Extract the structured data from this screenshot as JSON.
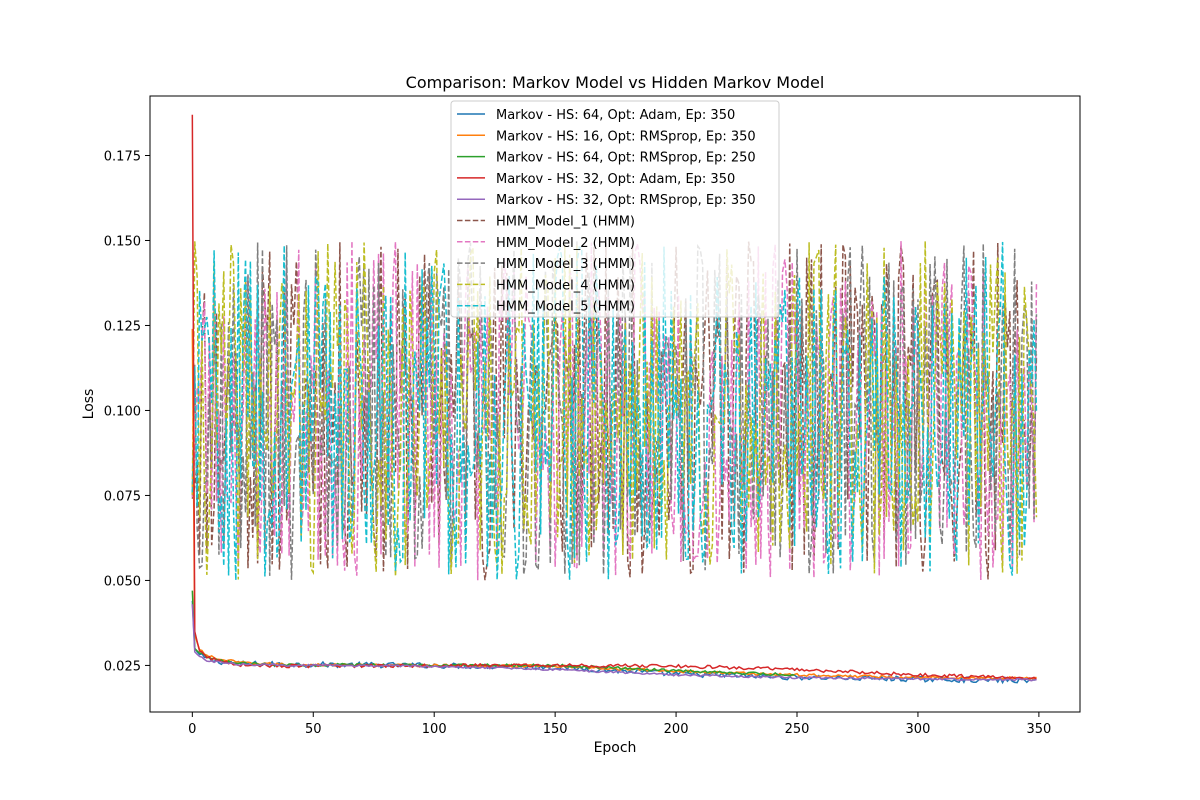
{
  "chart_data": {
    "type": "line",
    "title": "Comparison: Markov Model vs Hidden Markov Model",
    "xlabel": "Epoch",
    "ylabel": "Loss",
    "xlim": [
      -17.5,
      367
    ],
    "ylim": [
      0.0113,
      0.1925
    ],
    "xticks": [
      0,
      50,
      100,
      150,
      200,
      250,
      300,
      350
    ],
    "yticks": [
      0.025,
      0.05,
      0.075,
      0.1,
      0.125,
      0.15,
      0.175
    ],
    "ytick_labels": [
      "0.025",
      "0.050",
      "0.075",
      "0.100",
      "0.125",
      "0.150",
      "0.175"
    ],
    "grid": false,
    "legend_position": "top-center",
    "epochs": 350,
    "markov_series": [
      {
        "name": "Markov - HS: 64, Opt: Adam, Ep: 350",
        "color": "#1f77b4",
        "style": "solid",
        "epochs": 350,
        "start": 0.044,
        "curve": [
          [
            0,
            0.044
          ],
          [
            1,
            0.03
          ],
          [
            3,
            0.028
          ],
          [
            6,
            0.027
          ],
          [
            10,
            0.0262
          ],
          [
            20,
            0.0255
          ],
          [
            40,
            0.0253
          ],
          [
            100,
            0.025
          ],
          [
            150,
            0.0245
          ],
          [
            200,
            0.0225
          ],
          [
            250,
            0.0215
          ],
          [
            300,
            0.021
          ],
          [
            349,
            0.0205
          ]
        ],
        "noise": 0.0008
      },
      {
        "name": "Markov - HS: 16, Opt: RMSprop, Ep: 350",
        "color": "#ff7f0e",
        "style": "solid",
        "epochs": 350,
        "start": 0.124,
        "curve": [
          [
            0,
            0.124
          ],
          [
            1,
            0.034
          ],
          [
            3,
            0.0295
          ],
          [
            6,
            0.028
          ],
          [
            10,
            0.027
          ],
          [
            20,
            0.0258
          ],
          [
            40,
            0.0252
          ],
          [
            100,
            0.025
          ],
          [
            150,
            0.0248
          ],
          [
            200,
            0.0233
          ],
          [
            250,
            0.0222
          ],
          [
            300,
            0.0215
          ],
          [
            349,
            0.0212
          ]
        ],
        "noise": 0.0004
      },
      {
        "name": "Markov - HS: 64, Opt: RMSprop, Ep: 250",
        "color": "#2ca02c",
        "style": "solid",
        "epochs": 250,
        "start": 0.047,
        "curve": [
          [
            0,
            0.047
          ],
          [
            1,
            0.03
          ],
          [
            3,
            0.0285
          ],
          [
            6,
            0.0275
          ],
          [
            10,
            0.0265
          ],
          [
            20,
            0.0255
          ],
          [
            40,
            0.0252
          ],
          [
            100,
            0.0251
          ],
          [
            150,
            0.025
          ],
          [
            200,
            0.0235
          ],
          [
            249,
            0.0222
          ]
        ],
        "noise": 0.0004
      },
      {
        "name": "Markov - HS: 32, Opt: Adam, Ep: 350",
        "color": "#d62728",
        "style": "solid",
        "epochs": 350,
        "start": 0.187,
        "curve": [
          [
            0,
            0.187
          ],
          [
            1,
            0.035
          ],
          [
            3,
            0.029
          ],
          [
            6,
            0.0275
          ],
          [
            10,
            0.0265
          ],
          [
            20,
            0.0252
          ],
          [
            40,
            0.0248
          ],
          [
            100,
            0.025
          ],
          [
            150,
            0.025
          ],
          [
            200,
            0.0248
          ],
          [
            250,
            0.0238
          ],
          [
            300,
            0.0222
          ],
          [
            349,
            0.0212
          ]
        ],
        "noise": 0.0005
      },
      {
        "name": "Markov - HS: 32, Opt: RMSprop, Ep: 350",
        "color": "#9467bd",
        "style": "solid",
        "epochs": 350,
        "start": 0.043,
        "curve": [
          [
            0,
            0.043
          ],
          [
            1,
            0.029
          ],
          [
            3,
            0.0275
          ],
          [
            6,
            0.0265
          ],
          [
            10,
            0.026
          ],
          [
            20,
            0.0253
          ],
          [
            40,
            0.025
          ],
          [
            100,
            0.0248
          ],
          [
            150,
            0.0238
          ],
          [
            200,
            0.0222
          ],
          [
            250,
            0.0214
          ],
          [
            300,
            0.021
          ],
          [
            349,
            0.0208
          ]
        ],
        "noise": 0.0003
      }
    ],
    "hmm_series": [
      {
        "name": "HMM_Model_1 (HMM)",
        "color": "#8c564b",
        "style": "dashed",
        "range": [
          0.05,
          0.15
        ],
        "seed": 11
      },
      {
        "name": "HMM_Model_2 (HMM)",
        "color": "#e377c2",
        "style": "dashed",
        "range": [
          0.05,
          0.15
        ],
        "seed": 23
      },
      {
        "name": "HMM_Model_3 (HMM)",
        "color": "#7f7f7f",
        "style": "dashed",
        "range": [
          0.05,
          0.15
        ],
        "seed": 37
      },
      {
        "name": "HMM_Model_4 (HMM)",
        "color": "#bcbd22",
        "style": "dashed",
        "range": [
          0.05,
          0.15
        ],
        "seed": 41
      },
      {
        "name": "HMM_Model_5 (HMM)",
        "color": "#17becf",
        "style": "dashed",
        "range": [
          0.05,
          0.15
        ],
        "seed": 59
      }
    ]
  }
}
